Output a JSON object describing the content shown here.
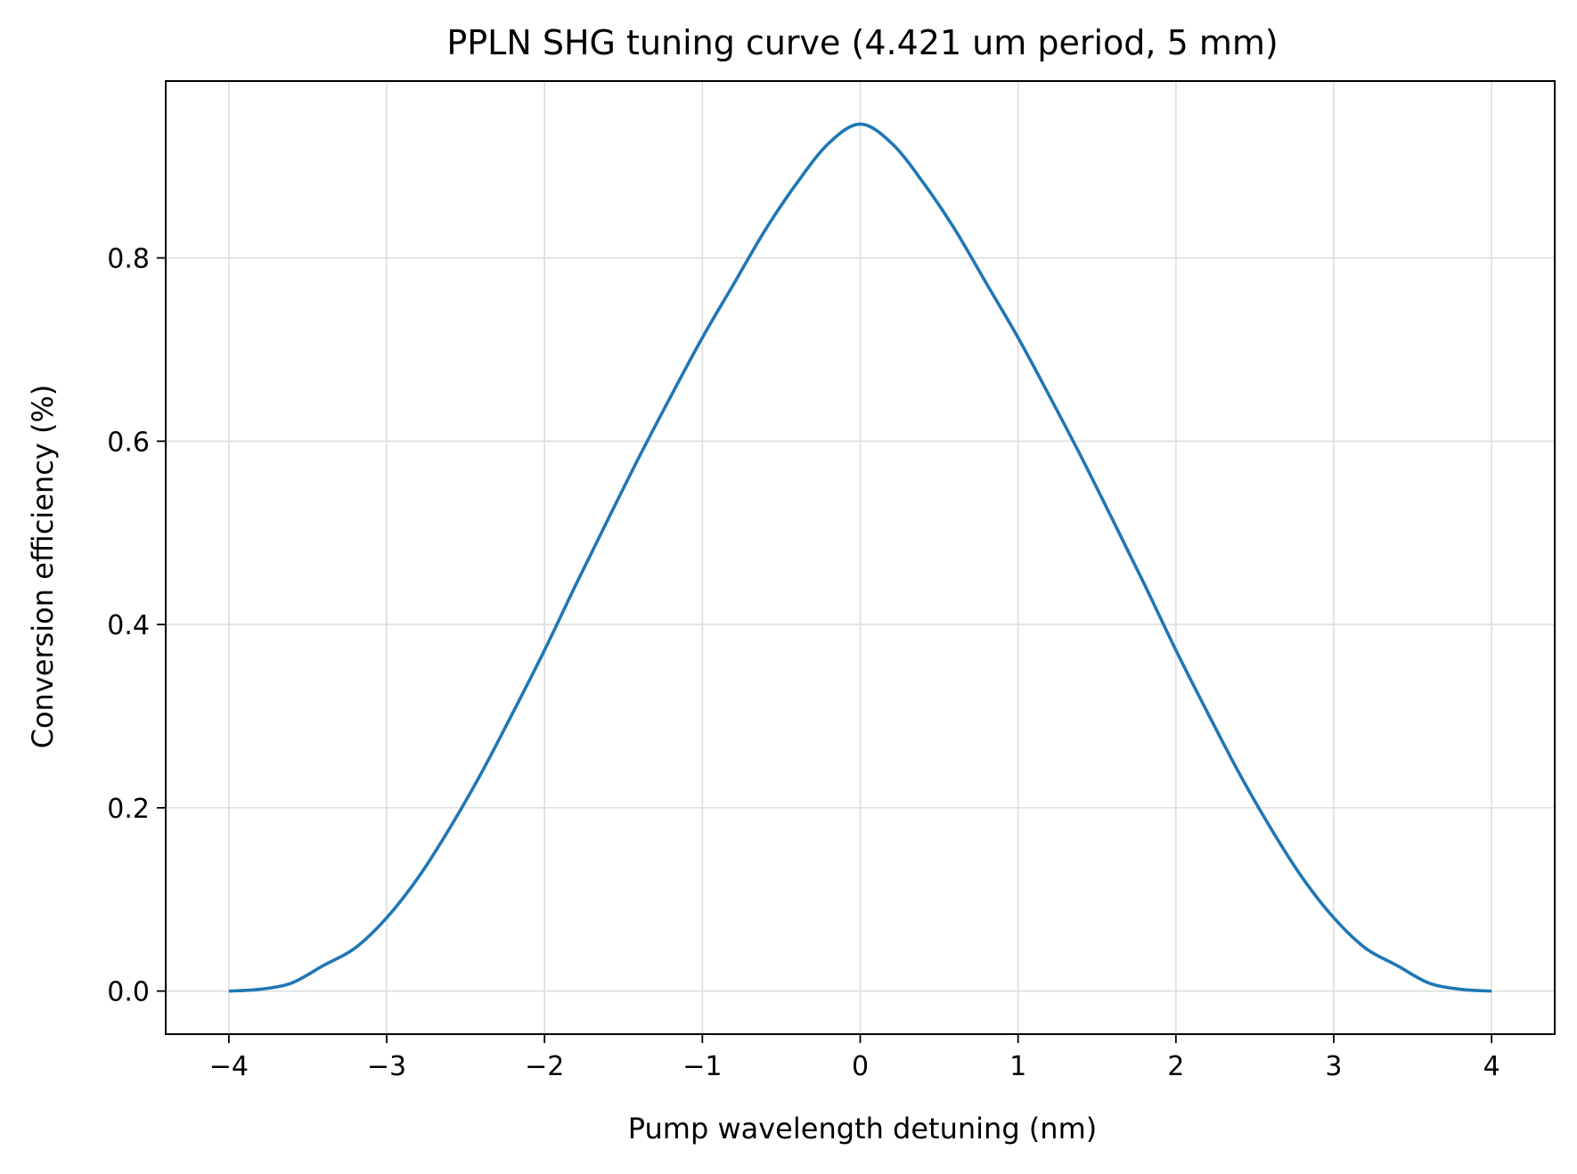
{
  "chart_data": {
    "type": "line",
    "title": "PPLN SHG tuning curve (4.421 um period, 5 mm)",
    "xlabel": "Pump wavelength detuning (nm)",
    "ylabel": "Conversion efficiency (%)",
    "xlim": [
      -4.4,
      4.4
    ],
    "ylim": [
      -0.047,
      0.993
    ],
    "grid": true,
    "x_ticks": [
      -4,
      -3,
      -2,
      -1,
      0,
      1,
      2,
      3,
      4
    ],
    "x_tick_labels": [
      "−4",
      "−3",
      "−2",
      "−1",
      "0",
      "1",
      "2",
      "3",
      "4"
    ],
    "y_ticks": [
      0.0,
      0.2,
      0.4,
      0.6,
      0.8
    ],
    "y_tick_labels": [
      "0.0",
      "0.2",
      "0.4",
      "0.6",
      "0.8"
    ],
    "series": [
      {
        "color": "#1f77b4",
        "x": [
          -4.0,
          -3.8,
          -3.6,
          -3.4,
          -3.2,
          -3.0,
          -2.8,
          -2.6,
          -2.4,
          -2.2,
          -2.0,
          -1.8,
          -1.6,
          -1.4,
          -1.2,
          -1.0,
          -0.8,
          -0.6,
          -0.4,
          -0.2,
          0.0,
          0.2,
          0.4,
          0.6,
          0.8,
          1.0,
          1.2,
          1.4,
          1.6,
          1.8,
          2.0,
          2.2,
          2.4,
          2.6,
          2.8,
          3.0,
          3.2,
          3.4,
          3.6,
          3.8,
          4.0
        ],
        "y": [
          0.0,
          0.002,
          0.009,
          0.028,
          0.047,
          0.08,
          0.124,
          0.178,
          0.238,
          0.304,
          0.372,
          0.444,
          0.514,
          0.583,
          0.649,
          0.713,
          0.772,
          0.831,
          0.882,
          0.925,
          0.946,
          0.925,
          0.882,
          0.831,
          0.772,
          0.713,
          0.649,
          0.583,
          0.514,
          0.444,
          0.372,
          0.304,
          0.238,
          0.178,
          0.124,
          0.08,
          0.047,
          0.028,
          0.009,
          0.002,
          0.0
        ]
      }
    ]
  }
}
